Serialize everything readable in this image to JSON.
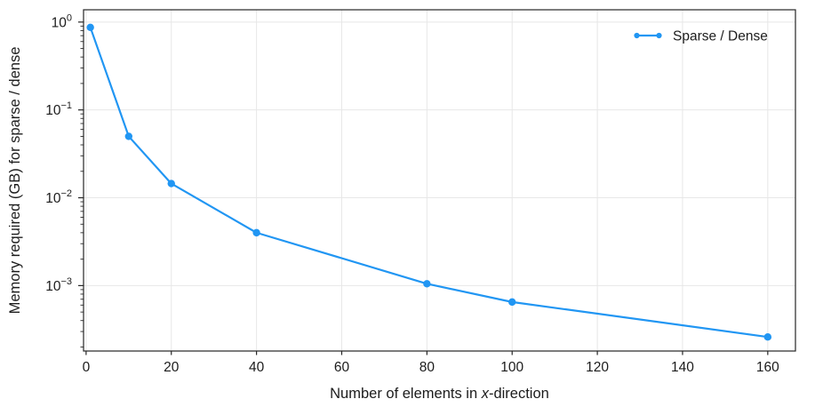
{
  "figure": {
    "background": "#ffffff"
  },
  "chart_data": {
    "type": "line",
    "title": "",
    "xlabel": "Number of elements in x-direction",
    "xlabel_parts": [
      {
        "text": "Number of elements in ",
        "italic": false
      },
      {
        "text": "x",
        "italic": true
      },
      {
        "text": "-direction",
        "italic": false
      }
    ],
    "ylabel": "Memory required (GB) for sparse / dense",
    "x_scale": "linear",
    "y_scale": "log",
    "xlim": [
      -0.6,
      166.5
    ],
    "ylim": [
      0.00018,
      1.38
    ],
    "x_ticks": [
      0,
      20,
      40,
      60,
      80,
      100,
      120,
      140,
      160
    ],
    "y_tick_exponents": [
      0,
      -1,
      -2,
      -3
    ],
    "grid": true,
    "legend": {
      "position": "upper-right",
      "frame": false,
      "entries": [
        "Sparse / Dense"
      ]
    },
    "series": [
      {
        "name": "Sparse / Dense",
        "color": "#2196f3",
        "marker": "circle",
        "x": [
          1,
          10,
          20,
          40,
          80,
          100,
          160
        ],
        "y": [
          0.87,
          0.05,
          0.0145,
          0.004,
          0.00105,
          0.00065,
          0.00026
        ]
      }
    ],
    "colors": {
      "grid": "#e7e7e7",
      "spine": "#262626",
      "tick": "#262626",
      "text": "#1c1c1c"
    }
  }
}
